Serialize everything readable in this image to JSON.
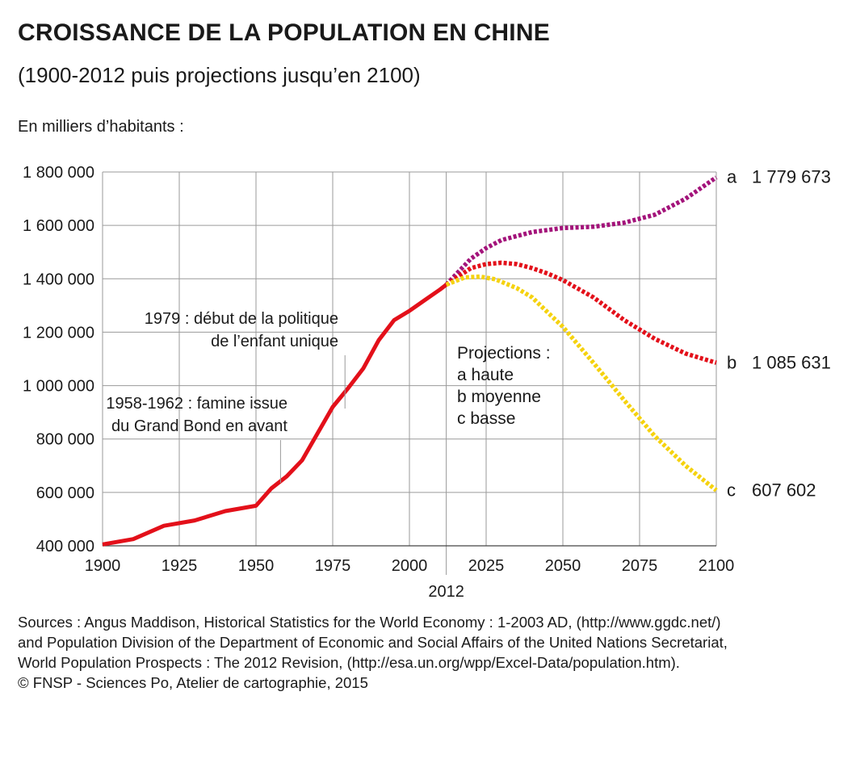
{
  "title": "CROISSANCE DE LA POPULATION EN CHINE",
  "subtitle": "(1900-2012 puis projections jusqu’en 2100)",
  "unit_label": "En milliers d’habitants :",
  "chart_data": {
    "type": "line",
    "xlim": [
      1900,
      2100
    ],
    "ylim": [
      400000,
      1800000
    ],
    "x_ticks": [
      1900,
      1925,
      1950,
      1975,
      2000,
      2025,
      2050,
      2075,
      2100
    ],
    "x_tick_labels": [
      "1900",
      "1925",
      "1950",
      "1975",
      "2000",
      "2025",
      "2050",
      "2075",
      "2100"
    ],
    "y_ticks": [
      400000,
      600000,
      800000,
      1000000,
      1200000,
      1400000,
      1600000,
      1800000
    ],
    "y_tick_labels": [
      "400 000",
      "600 000",
      "800 000",
      "1 000 000",
      "1 200 000",
      "1 400 000",
      "1 600 000",
      "1 800 000"
    ],
    "grid": true,
    "reference_line": {
      "x": 2012,
      "label": "2012"
    },
    "series": [
      {
        "style": "solid",
        "color": "#e3101a",
        "x": [
          1900,
          1910,
          1920,
          1930,
          1940,
          1950,
          1955,
          1960,
          1965,
          1970,
          1975,
          1980,
          1985,
          1990,
          1995,
          2000,
          2005,
          2010,
          2012
        ],
        "y": [
          405000,
          425000,
          475000,
          495000,
          530000,
          550000,
          615000,
          660000,
          720000,
          820000,
          920000,
          990000,
          1065000,
          1170000,
          1245000,
          1280000,
          1320000,
          1360000,
          1378000
        ]
      },
      {
        "name": "a",
        "style": "dotted",
        "color": "#a3137a",
        "end_label": "1 779 673",
        "x": [
          2012,
          2020,
          2025,
          2030,
          2040,
          2050,
          2060,
          2070,
          2080,
          2090,
          2100
        ],
        "y": [
          1378000,
          1475000,
          1515000,
          1545000,
          1575000,
          1590000,
          1595000,
          1610000,
          1640000,
          1700000,
          1779673
        ]
      },
      {
        "name": "b",
        "style": "dotted",
        "color": "#e3101a",
        "end_label": "1 085 631",
        "x": [
          2012,
          2020,
          2025,
          2030,
          2035,
          2040,
          2045,
          2050,
          2060,
          2070,
          2080,
          2090,
          2100
        ],
        "y": [
          1378000,
          1440000,
          1455000,
          1460000,
          1455000,
          1440000,
          1420000,
          1395000,
          1330000,
          1245000,
          1175000,
          1120000,
          1085631
        ]
      },
      {
        "name": "c",
        "style": "dotted",
        "color": "#f5d20f",
        "end_label": "607 602",
        "x": [
          2012,
          2018,
          2023,
          2028,
          2035,
          2040,
          2050,
          2060,
          2070,
          2080,
          2090,
          2100
        ],
        "y": [
          1378000,
          1405000,
          1408000,
          1398000,
          1365000,
          1330000,
          1220000,
          1085000,
          945000,
          810000,
          700000,
          607602
        ]
      }
    ],
    "annotations": [
      {
        "lines": [
          "1979 :  début de la politique",
          "de l’enfant unique"
        ],
        "pointer_x": 1979
      },
      {
        "lines": [
          "1958-1962 : famine issue",
          "du Grand Bond en avant"
        ],
        "pointer_x": 1958
      }
    ],
    "projections_legend": {
      "title": "Projections :",
      "items": [
        "a haute",
        "b moyenne",
        "c basse"
      ]
    }
  },
  "sources": [
    "Sources : Angus Maddison, Historical Statistics for the World Economy : 1-2003 AD, (http://www.ggdc.net/)",
    "and Population Division of the Department of Economic and Social Affairs of the United Nations Secretariat,",
    "World Population Prospects : The 2012 Revision, (http://esa.un.org/wpp/Excel-Data/population.htm).",
    "© FNSP - Sciences Po, Atelier de cartographie, 2015"
  ]
}
